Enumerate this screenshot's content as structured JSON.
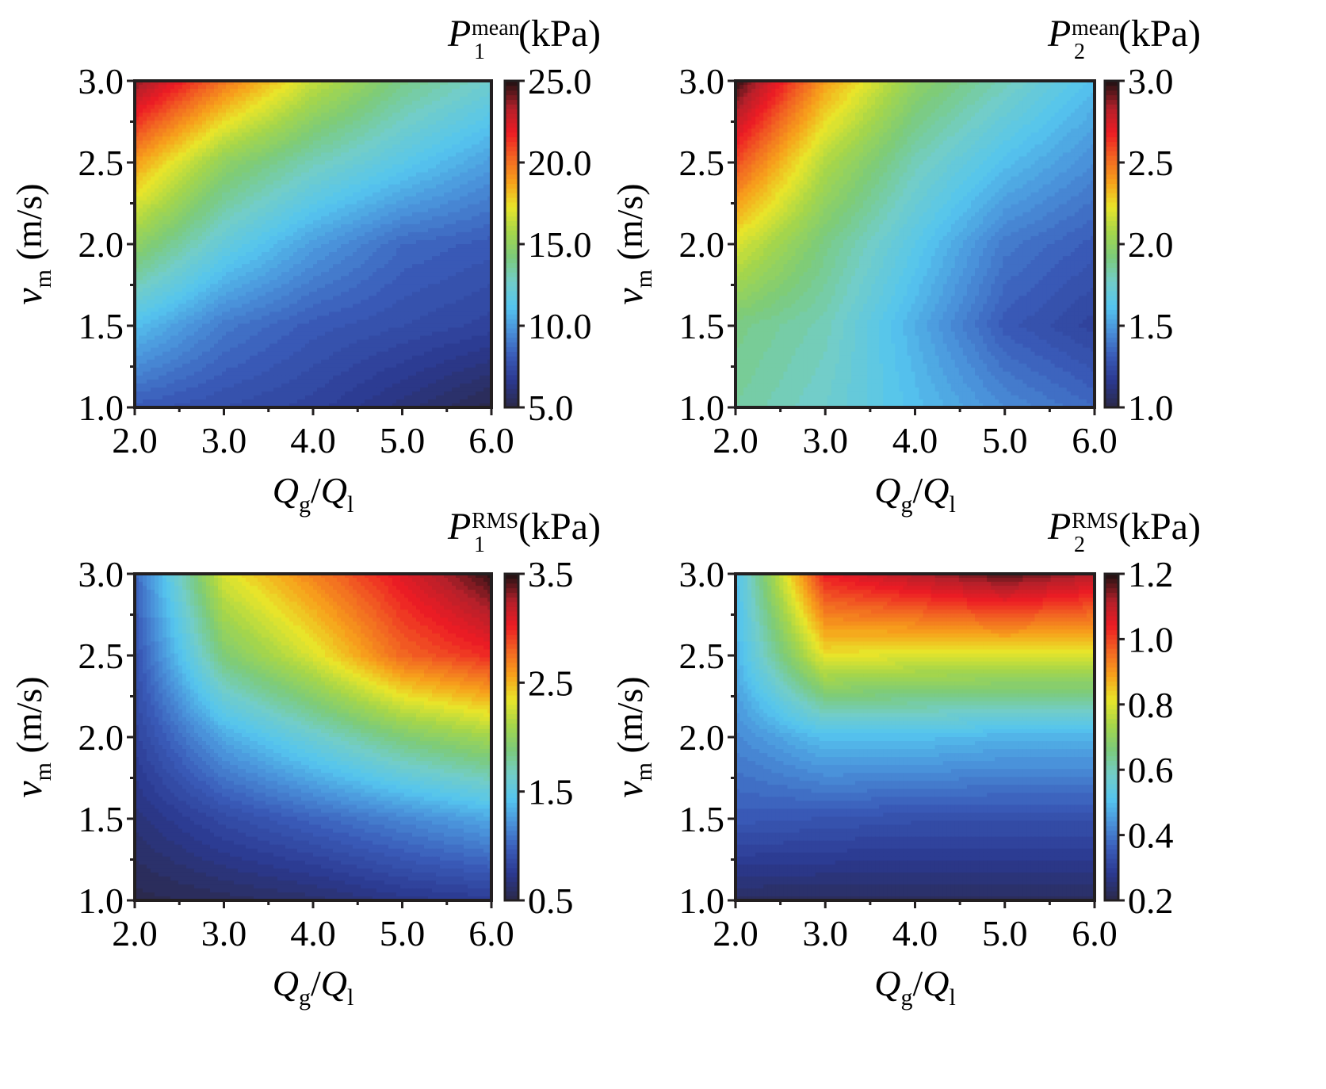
{
  "chart_data": [
    {
      "type": "heatmap",
      "id": "p1-mean",
      "title": "P1 mean (kPa)",
      "title_main": "P",
      "title_sub": "1",
      "title_sup": "mean",
      "title_unit": "(kPa)",
      "xlabel_main": "Q",
      "xlabel_sub": "g",
      "xlabel_slash": "/",
      "xlabel_main2": "Q",
      "xlabel_sub2": "l",
      "ylabel_main": "v",
      "ylabel_sub": "m",
      "ylabel_unit": "(m/s)",
      "x": [
        2.0,
        3.0,
        4.0,
        5.0,
        6.0
      ],
      "y": [
        1.0,
        1.5,
        2.0,
        2.5,
        3.0
      ],
      "xlim": [
        2.0,
        6.0
      ],
      "ylim": [
        1.0,
        3.0
      ],
      "xticks": [
        "2.0",
        "3.0",
        "4.0",
        "5.0",
        "6.0"
      ],
      "yticks": [
        "1.0",
        "1.5",
        "2.0",
        "2.5",
        "3.0"
      ],
      "clim": [
        5.0,
        25.0
      ],
      "cticks": [
        "5.0",
        "10.0",
        "15.0",
        "20.0",
        "25.0"
      ],
      "z": [
        [
          8.0,
          7.5,
          7.0,
          6.0,
          5.0
        ],
        [
          11.0,
          9.0,
          8.0,
          7.5,
          7.0
        ],
        [
          15.0,
          12.0,
          10.0,
          8.5,
          8.0
        ],
        [
          19.0,
          15.0,
          13.0,
          11.5,
          10.0
        ],
        [
          24.0,
          20.0,
          16.5,
          14.0,
          12.5
        ]
      ]
    },
    {
      "type": "heatmap",
      "id": "p2-mean",
      "title": "P2 mean (kPa)",
      "title_main": "P",
      "title_sub": "2",
      "title_sup": "mean",
      "title_unit": "(kPa)",
      "xlabel_main": "Q",
      "xlabel_sub": "g",
      "xlabel_slash": "/",
      "xlabel_main2": "Q",
      "xlabel_sub2": "l",
      "ylabel_main": "v",
      "ylabel_sub": "m",
      "ylabel_unit": "(m/s)",
      "x": [
        2.0,
        3.0,
        4.0,
        5.0,
        6.0
      ],
      "y": [
        1.0,
        1.5,
        2.0,
        2.5,
        3.0
      ],
      "xlim": [
        2.0,
        6.0
      ],
      "ylim": [
        1.0,
        3.0
      ],
      "xticks": [
        "2.0",
        "3.0",
        "4.0",
        "5.0",
        "6.0"
      ],
      "yticks": [
        "1.0",
        "1.5",
        "2.0",
        "2.5",
        "3.0"
      ],
      "clim": [
        1.0,
        3.0
      ],
      "cticks": [
        "1.0",
        "1.5",
        "2.0",
        "2.5",
        "3.0"
      ],
      "z": [
        [
          1.85,
          1.75,
          1.6,
          1.45,
          1.35
        ],
        [
          1.9,
          1.8,
          1.55,
          1.3,
          1.2
        ],
        [
          2.2,
          1.9,
          1.65,
          1.4,
          1.3
        ],
        [
          2.6,
          2.1,
          1.8,
          1.6,
          1.45
        ],
        [
          3.0,
          2.4,
          2.0,
          1.8,
          1.6
        ]
      ]
    },
    {
      "type": "heatmap",
      "id": "p1-rms",
      "title": "P1 RMS (kPa)",
      "title_main": "P",
      "title_sub": "1",
      "title_sup": "RMS",
      "title_unit": "(kPa)",
      "xlabel_main": "Q",
      "xlabel_sub": "g",
      "xlabel_slash": "/",
      "xlabel_main2": "Q",
      "xlabel_sub2": "l",
      "ylabel_main": "v",
      "ylabel_sub": "m",
      "ylabel_unit": "(m/s)",
      "x": [
        2.0,
        3.0,
        4.0,
        5.0,
        6.0
      ],
      "y": [
        1.0,
        1.5,
        2.0,
        2.5,
        3.0
      ],
      "xlim": [
        2.0,
        6.0
      ],
      "ylim": [
        1.0,
        3.0
      ],
      "xticks": [
        "2.0",
        "3.0",
        "4.0",
        "5.0",
        "6.0"
      ],
      "yticks": [
        "1.0",
        "1.5",
        "2.0",
        "2.5",
        "3.0"
      ],
      "clim": [
        0.5,
        3.5
      ],
      "cticks": [
        "0.5",
        "1.5",
        "2.5",
        "3.5"
      ],
      "z": [
        [
          0.5,
          0.55,
          0.6,
          0.7,
          0.75
        ],
        [
          0.65,
          0.85,
          1.0,
          1.15,
          1.3
        ],
        [
          0.8,
          1.3,
          1.6,
          1.9,
          2.1
        ],
        [
          0.9,
          1.9,
          2.3,
          2.8,
          3.0
        ],
        [
          1.0,
          2.3,
          2.7,
          3.1,
          3.5
        ]
      ]
    },
    {
      "type": "heatmap",
      "id": "p2-rms",
      "title": "P2 RMS (kPa)",
      "title_main": "P",
      "title_sub": "2",
      "title_sup": "RMS",
      "title_unit": "(kPa)",
      "xlabel_main": "Q",
      "xlabel_sub": "g",
      "xlabel_slash": "/",
      "xlabel_main2": "Q",
      "xlabel_sub2": "l",
      "ylabel_main": "v",
      "ylabel_sub": "m",
      "ylabel_unit": "(m/s)",
      "x": [
        2.0,
        3.0,
        4.0,
        5.0,
        6.0
      ],
      "y": [
        1.0,
        1.5,
        2.0,
        2.5,
        3.0
      ],
      "xlim": [
        2.0,
        6.0
      ],
      "ylim": [
        1.0,
        3.0
      ],
      "xticks": [
        "2.0",
        "3.0",
        "4.0",
        "5.0",
        "6.0"
      ],
      "yticks": [
        "1.0",
        "1.5",
        "2.0",
        "2.5",
        "3.0"
      ],
      "clim": [
        0.2,
        1.2
      ],
      "cticks": [
        "0.2",
        "0.4",
        "0.6",
        "0.8",
        "1.0",
        "1.2"
      ],
      "z": [
        [
          0.22,
          0.22,
          0.22,
          0.22,
          0.22
        ],
        [
          0.35,
          0.34,
          0.33,
          0.33,
          0.33
        ],
        [
          0.42,
          0.5,
          0.5,
          0.48,
          0.48
        ],
        [
          0.48,
          0.82,
          0.8,
          0.8,
          0.8
        ],
        [
          0.5,
          1.05,
          1.12,
          1.18,
          1.12
        ]
      ]
    }
  ],
  "colormap": [
    "#2b2a4e",
    "#2b3990",
    "#3a5bb8",
    "#4a90d9",
    "#55c5ef",
    "#72cdc8",
    "#7ccb7a",
    "#a6d64a",
    "#e8e52a",
    "#f7a21b",
    "#f26522",
    "#ed1c24",
    "#b3202a",
    "#2a1214"
  ]
}
